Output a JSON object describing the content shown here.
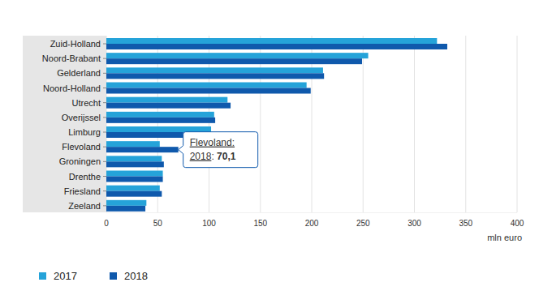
{
  "chart_data": {
    "type": "bar",
    "orientation": "horizontal",
    "categories": [
      "Zuid-Holland",
      "Noord-Brabant",
      "Gelderland",
      "Noord-Holland",
      "Utrecht",
      "Overijssel",
      "Limburg",
      "Flevoland",
      "Groningen",
      "Drenthe",
      "Friesland",
      "Zeeland"
    ],
    "series": [
      {
        "name": "2017",
        "color": "#25a3d9",
        "values": [
          322,
          255,
          211,
          195,
          118,
          105,
          102,
          52,
          54,
          55,
          52,
          39
        ]
      },
      {
        "name": "2018",
        "color": "#0f59ac",
        "values": [
          332,
          249,
          212,
          199,
          121,
          106,
          75,
          70.1,
          56,
          55,
          54,
          38
        ]
      }
    ],
    "x_label": "mln euro",
    "xlim": [
      0,
      400
    ],
    "xticks": [
      0,
      50,
      100,
      150,
      200,
      250,
      300,
      350,
      400
    ],
    "grid": true,
    "legend": "bottom",
    "annotations": [
      {
        "category": "Flevoland:",
        "series": "2018",
        "separator": ": ",
        "label": "70,1",
        "value": 70.1
      }
    ]
  }
}
